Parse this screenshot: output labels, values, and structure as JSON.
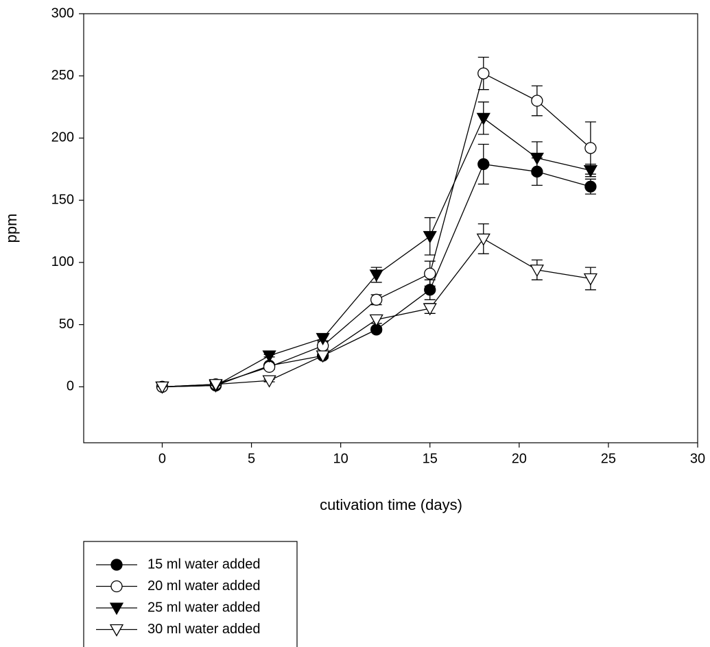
{
  "chart_data": {
    "type": "line",
    "x_label": "cutivation time (days)",
    "y_label": "ppm",
    "x": [
      0,
      3,
      6,
      9,
      12,
      15,
      18,
      21,
      24
    ],
    "xlim": [
      -4.4,
      30
    ],
    "xticks": [
      0,
      5,
      10,
      15,
      20,
      25,
      30
    ],
    "ylim": [
      -45,
      300
    ],
    "yticks": [
      0,
      50,
      100,
      150,
      200,
      250,
      300
    ],
    "grid": false,
    "legend": "below",
    "series": [
      {
        "name": "15 ml water added",
        "color": "#000000",
        "marker": "circle",
        "fill": "#000000",
        "values": [
          0,
          1,
          17,
          25,
          46,
          78,
          179,
          173,
          161
        ],
        "errors": [
          0,
          0,
          1,
          2,
          2,
          8,
          16,
          11,
          6
        ]
      },
      {
        "name": "20 ml water added",
        "color": "#000000",
        "marker": "circle",
        "fill": "#ffffff",
        "values": [
          0,
          2,
          16,
          33,
          70,
          91,
          252,
          230,
          192
        ],
        "errors": [
          0,
          0,
          2,
          3,
          4,
          10,
          13,
          12,
          21
        ]
      },
      {
        "name": "25 ml water added",
        "color": "#000000",
        "marker": "triangle-down",
        "fill": "#000000",
        "values": [
          0,
          1,
          25,
          39,
          90,
          121,
          216,
          184,
          174
        ],
        "errors": [
          0,
          0,
          1,
          2,
          6,
          15,
          13,
          13,
          5
        ]
      },
      {
        "name": "30 ml water added",
        "color": "#000000",
        "marker": "triangle-down",
        "fill": "#ffffff",
        "values": [
          0,
          2,
          5,
          25,
          54,
          63,
          119,
          94,
          87
        ],
        "errors": [
          0,
          0,
          1,
          2,
          3,
          4,
          12,
          8,
          9
        ]
      }
    ]
  }
}
